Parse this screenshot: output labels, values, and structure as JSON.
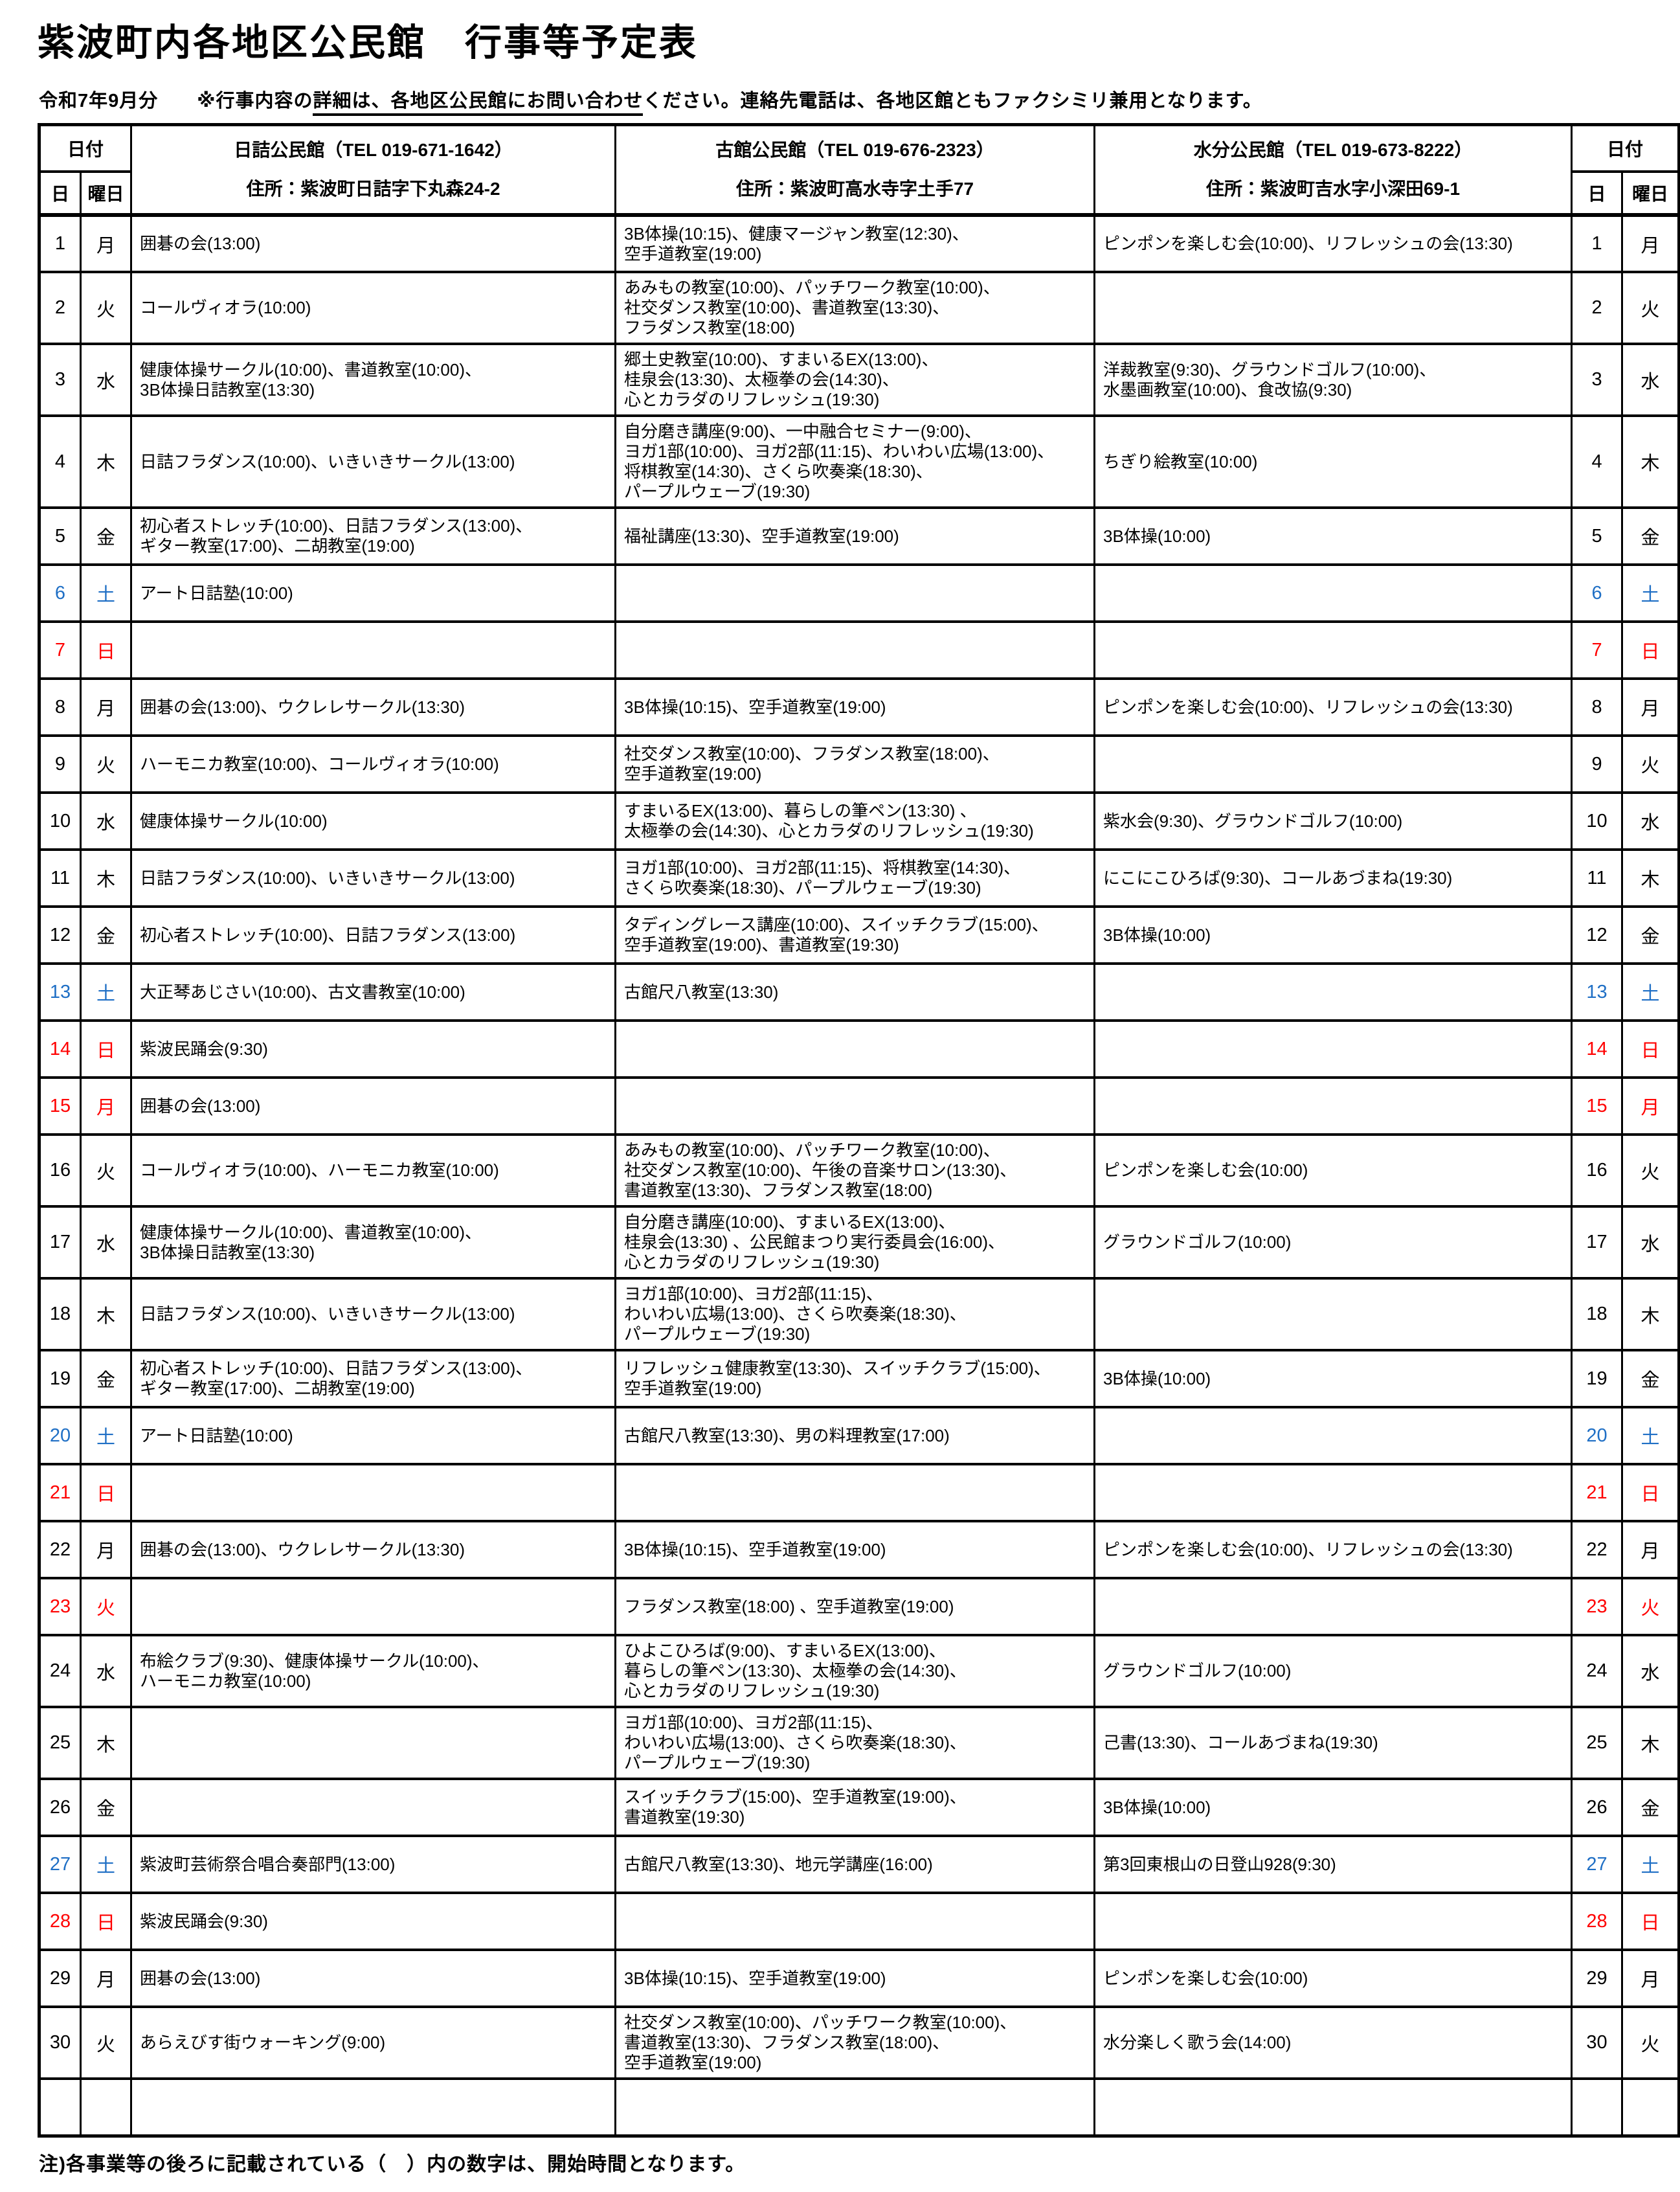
{
  "title": "紫波町内各地区公民館　行事等予定表",
  "subtitle": {
    "prefix": "令和7年9月分　　※行事内容の",
    "underlined": "詳細は、各地区公民館にお問い合わせ",
    "suffix": "ください。連絡先電話は、各地区館ともファクシミリ兼用となります。"
  },
  "colors": {
    "saturday": "#1F6FC5",
    "sunday_holiday": "#FF0000",
    "text": "#000000",
    "border": "#000000"
  },
  "header": {
    "date_label": "日付",
    "day_label": "日",
    "weekday_label": "曜日",
    "centers": [
      {
        "name": "日詰公民館（TEL 019-671-1642）",
        "address": "住所：紫波町日詰字下丸森24-2"
      },
      {
        "name": "古館公民館（TEL 019-676-2323）",
        "address": "住所：紫波町高水寺字土手77"
      },
      {
        "name": "水分公民館（TEL 019-673-8222）",
        "address": "住所：紫波町吉水字小深田69-1"
      }
    ]
  },
  "rows": [
    {
      "day": "1",
      "weekday": "月",
      "color": "black",
      "hizume": [
        "囲碁の会(13:00)"
      ],
      "furudate": [
        "3B体操(10:15)、健康マージャン教室(12:30)、",
        "空手道教室(19:00)"
      ],
      "mizuwake": [
        "ピンポンを楽しむ会(10:00)、リフレッシュの会(13:30)"
      ]
    },
    {
      "day": "2",
      "weekday": "火",
      "color": "black",
      "hizume": [
        "コールヴィオラ(10:00)"
      ],
      "furudate": [
        "あみもの教室(10:00)、パッチワーク教室(10:00)、",
        "社交ダンス教室(10:00)、書道教室(13:30)、",
        "フラダンス教室(18:00)"
      ],
      "mizuwake": []
    },
    {
      "day": "3",
      "weekday": "水",
      "color": "black",
      "hizume": [
        "健康体操サークル(10:00)、書道教室(10:00)、",
        "3B体操日詰教室(13:30)"
      ],
      "furudate": [
        "郷土史教室(10:00)、すまいるEX(13:00)、",
        "桂泉会(13:30)、太極拳の会(14:30)、",
        "心とカラダのリフレッシュ(19:30)"
      ],
      "mizuwake": [
        "洋裁教室(9:30)、グラウンドゴルフ(10:00)、",
        "水墨画教室(10:00)、食改協(9:30)"
      ]
    },
    {
      "day": "4",
      "weekday": "木",
      "color": "black",
      "hizume": [
        "日詰フラダンス(10:00)、いきいきサークル(13:00)"
      ],
      "furudate": [
        "自分磨き講座(9:00)、一中融合セミナー(9:00)、",
        "ヨガ1部(10:00)、ヨガ2部(11:15)、わいわい広場(13:00)、",
        "将棋教室(14:30)、さくら吹奏楽(18:30)、",
        "パープルウェーブ(19:30)"
      ],
      "mizuwake": [
        "ちぎり絵教室(10:00)"
      ]
    },
    {
      "day": "5",
      "weekday": "金",
      "color": "black",
      "hizume": [
        "初心者ストレッチ(10:00)、日詰フラダンス(13:00)、",
        "ギター教室(17:00)、二胡教室(19:00)"
      ],
      "furudate": [
        "福祉講座(13:30)、空手道教室(19:00)"
      ],
      "mizuwake": [
        "3B体操(10:00)"
      ]
    },
    {
      "day": "6",
      "weekday": "土",
      "color": "blue",
      "hizume": [
        "アート日詰塾(10:00)"
      ],
      "furudate": [],
      "mizuwake": []
    },
    {
      "day": "7",
      "weekday": "日",
      "color": "red",
      "hizume": [],
      "furudate": [],
      "mizuwake": []
    },
    {
      "day": "8",
      "weekday": "月",
      "color": "black",
      "hizume": [
        "囲碁の会(13:00)、ウクレレサークル(13:30)"
      ],
      "furudate": [
        "3B体操(10:15)、空手道教室(19:00)"
      ],
      "mizuwake": [
        "ピンポンを楽しむ会(10:00)、リフレッシュの会(13:30)"
      ]
    },
    {
      "day": "9",
      "weekday": "火",
      "color": "black",
      "hizume": [
        "ハーモニカ教室(10:00)、コールヴィオラ(10:00)"
      ],
      "furudate": [
        "社交ダンス教室(10:00)、フラダンス教室(18:00)、",
        "空手道教室(19:00)"
      ],
      "mizuwake": []
    },
    {
      "day": "10",
      "weekday": "水",
      "color": "black",
      "hizume": [
        "健康体操サークル(10:00)"
      ],
      "furudate": [
        "すまいるEX(13:00)、暮らしの筆ペン(13:30) 、",
        "太極拳の会(14:30)、心とカラダのリフレッシュ(19:30)"
      ],
      "mizuwake": [
        "紫水会(9:30)、グラウンドゴルフ(10:00)"
      ]
    },
    {
      "day": "11",
      "weekday": "木",
      "color": "black",
      "hizume": [
        "日詰フラダンス(10:00)、いきいきサークル(13:00)"
      ],
      "furudate": [
        "ヨガ1部(10:00)、ヨガ2部(11:15)、将棋教室(14:30)、",
        "さくら吹奏楽(18:30)、パープルウェーブ(19:30)"
      ],
      "mizuwake": [
        "にこにこひろば(9:30)、コールあづまね(19:30)"
      ]
    },
    {
      "day": "12",
      "weekday": "金",
      "color": "black",
      "hizume": [
        "初心者ストレッチ(10:00)、日詰フラダンス(13:00)"
      ],
      "furudate": [
        "タディングレース講座(10:00)、スイッチクラブ(15:00)、",
        "空手道教室(19:00)、書道教室(19:30)"
      ],
      "mizuwake": [
        "3B体操(10:00)"
      ]
    },
    {
      "day": "13",
      "weekday": "土",
      "color": "blue",
      "hizume": [
        "大正琴あじさい(10:00)、古文書教室(10:00)"
      ],
      "furudate": [
        "古館尺八教室(13:30)"
      ],
      "mizuwake": []
    },
    {
      "day": "14",
      "weekday": "日",
      "color": "red",
      "hizume": [
        "紫波民踊会(9:30)"
      ],
      "furudate": [],
      "mizuwake": []
    },
    {
      "day": "15",
      "weekday": "月",
      "color": "red",
      "hizume": [
        "囲碁の会(13:00)"
      ],
      "furudate": [],
      "mizuwake": []
    },
    {
      "day": "16",
      "weekday": "火",
      "color": "black",
      "hizume": [
        "コールヴィオラ(10:00)、ハーモニカ教室(10:00)"
      ],
      "furudate": [
        "あみもの教室(10:00)、パッチワーク教室(10:00)、",
        "社交ダンス教室(10:00)、午後の音楽サロン(13:30)、",
        "書道教室(13:30)、フラダンス教室(18:00)"
      ],
      "mizuwake": [
        "ピンポンを楽しむ会(10:00)"
      ]
    },
    {
      "day": "17",
      "weekday": "水",
      "color": "black",
      "hizume": [
        "健康体操サークル(10:00)、書道教室(10:00)、",
        "3B体操日詰教室(13:30)"
      ],
      "furudate": [
        "自分磨き講座(10:00)、すまいるEX(13:00)、",
        "桂泉会(13:30) 、公民館まつり実行委員会(16:00)、",
        "心とカラダのリフレッシュ(19:30)"
      ],
      "mizuwake": [
        "グラウンドゴルフ(10:00)"
      ]
    },
    {
      "day": "18",
      "weekday": "木",
      "color": "black",
      "hizume": [
        "日詰フラダンス(10:00)、いきいきサークル(13:00)"
      ],
      "furudate": [
        "ヨガ1部(10:00)、ヨガ2部(11:15)、",
        "わいわい広場(13:00)、さくら吹奏楽(18:30)、",
        "パープルウェーブ(19:30)"
      ],
      "mizuwake": []
    },
    {
      "day": "19",
      "weekday": "金",
      "color": "black",
      "hizume": [
        "初心者ストレッチ(10:00)、日詰フラダンス(13:00)、",
        "ギター教室(17:00)、二胡教室(19:00)"
      ],
      "furudate": [
        "リフレッシュ健康教室(13:30)、スイッチクラブ(15:00)、",
        "空手道教室(19:00)"
      ],
      "mizuwake": [
        "3B体操(10:00)"
      ]
    },
    {
      "day": "20",
      "weekday": "土",
      "color": "blue",
      "hizume": [
        "アート日詰塾(10:00)"
      ],
      "furudate": [
        "古館尺八教室(13:30)、男の料理教室(17:00)"
      ],
      "mizuwake": []
    },
    {
      "day": "21",
      "weekday": "日",
      "color": "red",
      "hizume": [],
      "furudate": [],
      "mizuwake": []
    },
    {
      "day": "22",
      "weekday": "月",
      "color": "black",
      "hizume": [
        "囲碁の会(13:00)、ウクレレサークル(13:30)"
      ],
      "furudate": [
        "3B体操(10:15)、空手道教室(19:00)"
      ],
      "mizuwake": [
        "ピンポンを楽しむ会(10:00)、リフレッシュの会(13:30)"
      ]
    },
    {
      "day": "23",
      "weekday": "火",
      "color": "red",
      "hizume": [],
      "furudate": [
        "フラダンス教室(18:00) 、空手道教室(19:00)"
      ],
      "mizuwake": []
    },
    {
      "day": "24",
      "weekday": "水",
      "color": "black",
      "hizume": [
        "布絵クラブ(9:30)、健康体操サークル(10:00)、",
        "ハーモニカ教室(10:00)"
      ],
      "furudate": [
        "ひよこひろば(9:00)、すまいるEX(13:00)、",
        "暮らしの筆ペン(13:30)、太極拳の会(14:30)、",
        "心とカラダのリフレッシュ(19:30)"
      ],
      "mizuwake": [
        "グラウンドゴルフ(10:00)"
      ]
    },
    {
      "day": "25",
      "weekday": "木",
      "color": "black",
      "hizume": [],
      "furudate": [
        "ヨガ1部(10:00)、ヨガ2部(11:15)、",
        "わいわい広場(13:00)、さくら吹奏楽(18:30)、",
        "パープルウェーブ(19:30)"
      ],
      "mizuwake": [
        "己書(13:30)、コールあづまね(19:30)"
      ]
    },
    {
      "day": "26",
      "weekday": "金",
      "color": "black",
      "hizume": [],
      "furudate": [
        "スイッチクラブ(15:00)、空手道教室(19:00)、",
        "書道教室(19:30)"
      ],
      "mizuwake": [
        "3B体操(10:00)"
      ]
    },
    {
      "day": "27",
      "weekday": "土",
      "color": "blue",
      "hizume": [
        "紫波町芸術祭合唱合奏部門(13:00)"
      ],
      "furudate": [
        "古館尺八教室(13:30)、地元学講座(16:00)"
      ],
      "mizuwake": [
        "第3回東根山の日登山928(9:30)"
      ]
    },
    {
      "day": "28",
      "weekday": "日",
      "color": "red",
      "hizume": [
        "紫波民踊会(9:30)"
      ],
      "furudate": [],
      "mizuwake": []
    },
    {
      "day": "29",
      "weekday": "月",
      "color": "black",
      "hizume": [
        "囲碁の会(13:00)"
      ],
      "furudate": [
        "3B体操(10:15)、空手道教室(19:00)"
      ],
      "mizuwake": [
        "ピンポンを楽しむ会(10:00)"
      ]
    },
    {
      "day": "30",
      "weekday": "火",
      "color": "black",
      "hizume": [
        "あらえびす街ウォーキング(9:00)"
      ],
      "furudate": [
        "社交ダンス教室(10:00)、パッチワーク教室(10:00)、",
        "書道教室(13:30)、フラダンス教室(18:00)、",
        "空手道教室(19:00)"
      ],
      "mizuwake": [
        "水分楽しく歌う会(14:00)"
      ]
    },
    {
      "day": "",
      "weekday": "",
      "color": "black",
      "hizume": [],
      "furudate": [],
      "mizuwake": []
    }
  ],
  "footnote": "注)各事業等の後ろに記載されている（　）内の数字は、開始時間となります。"
}
